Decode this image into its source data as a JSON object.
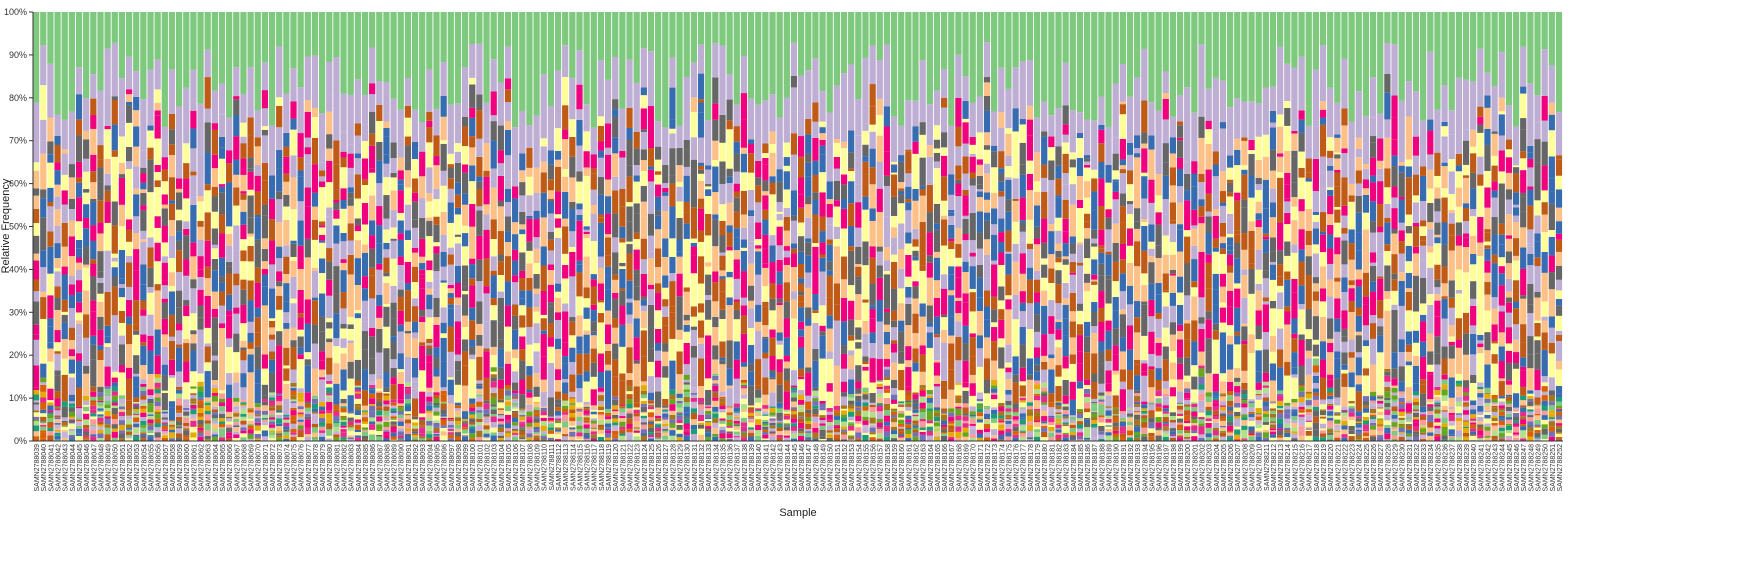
{
  "chart_data": {
    "type": "bar",
    "stacked": true,
    "normalized": true,
    "xlabel": "Sample",
    "ylabel": "Relative Frequency",
    "ylim": [
      0,
      100
    ],
    "y_ticks": [
      "0%",
      "10%",
      "20%",
      "30%",
      "40%",
      "50%",
      "60%",
      "70%",
      "80%",
      "90%",
      "100%"
    ],
    "sample_prefix": "SAMN",
    "sample_id_start": 2788039,
    "sample_id_step": 1,
    "sample_count": 214,
    "top_segment_share_range": [
      7,
      27
    ],
    "palette": [
      "#7fc97f",
      "#beaed4",
      "#fdc086",
      "#ffff99",
      "#386cb0",
      "#f0027f",
      "#bf5b17",
      "#666666"
    ],
    "grid": false,
    "legend": "none"
  }
}
